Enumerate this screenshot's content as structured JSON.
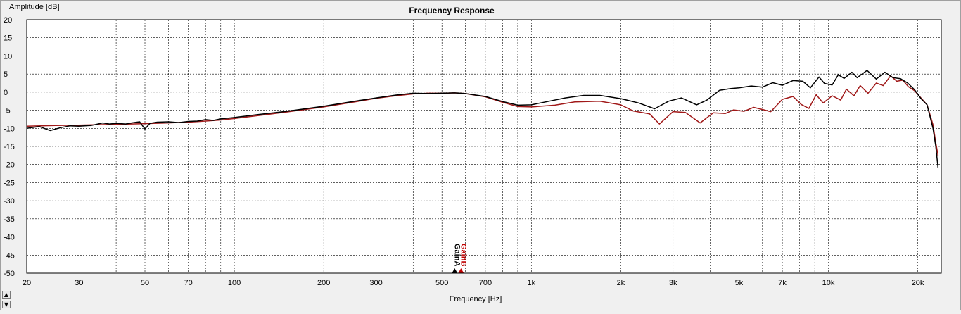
{
  "chart_data": {
    "type": "line",
    "title": "Frequency Response",
    "xlabel": "Frequency [Hz]",
    "ylabel": "Amplitude [dB]",
    "x_scale": "log",
    "xlim": [
      20,
      24000
    ],
    "ylim": [
      -50,
      20
    ],
    "grid": true,
    "x_ticks": [
      {
        "value": 20,
        "label": "20"
      },
      {
        "value": 30,
        "label": "30"
      },
      {
        "value": 50,
        "label": "50"
      },
      {
        "value": 70,
        "label": "70"
      },
      {
        "value": 100,
        "label": "100"
      },
      {
        "value": 200,
        "label": "200"
      },
      {
        "value": 300,
        "label": "300"
      },
      {
        "value": 500,
        "label": "500"
      },
      {
        "value": 700,
        "label": "700"
      },
      {
        "value": 1000,
        "label": "1k"
      },
      {
        "value": 2000,
        "label": "2k"
      },
      {
        "value": 3000,
        "label": "3k"
      },
      {
        "value": 5000,
        "label": "5k"
      },
      {
        "value": 7000,
        "label": "7k"
      },
      {
        "value": 10000,
        "label": "10k"
      },
      {
        "value": 20000,
        "label": "20k"
      }
    ],
    "x_minor_gridlines": [
      40,
      60,
      80,
      90,
      400,
      600,
      800,
      900,
      4000,
      6000,
      8000,
      9000
    ],
    "y_ticks": [
      20,
      15,
      10,
      5,
      0,
      -5,
      -10,
      -15,
      -20,
      -25,
      -30,
      -35,
      -40,
      -45,
      -50
    ],
    "markers": [
      {
        "label": "GainA",
        "x": 540,
        "color": "#000000"
      },
      {
        "label": "GainB",
        "x": 540,
        "color": "#c00000"
      }
    ],
    "series": [
      {
        "color": "#000000",
        "points": [
          [
            20,
            -10
          ],
          [
            22,
            -9.5
          ],
          [
            24,
            -10.6
          ],
          [
            26,
            -9.8
          ],
          [
            28,
            -9.3
          ],
          [
            30,
            -9.4
          ],
          [
            33,
            -9.2
          ],
          [
            36,
            -8.5
          ],
          [
            38,
            -8.8
          ],
          [
            40,
            -8.6
          ],
          [
            43,
            -8.8
          ],
          [
            45,
            -8.5
          ],
          [
            48,
            -8.2
          ],
          [
            50,
            -10.2
          ],
          [
            52,
            -8.6
          ],
          [
            55,
            -8.3
          ],
          [
            60,
            -8.2
          ],
          [
            65,
            -8.4
          ],
          [
            70,
            -8.1
          ],
          [
            75,
            -8.0
          ],
          [
            80,
            -7.6
          ],
          [
            85,
            -7.8
          ],
          [
            90,
            -7.4
          ],
          [
            100,
            -7.0
          ],
          [
            120,
            -6.2
          ],
          [
            150,
            -5.3
          ],
          [
            200,
            -3.9
          ],
          [
            250,
            -2.6
          ],
          [
            300,
            -1.6
          ],
          [
            350,
            -0.8
          ],
          [
            400,
            -0.3
          ],
          [
            450,
            -0.4
          ],
          [
            500,
            -0.3
          ],
          [
            550,
            -0.2
          ],
          [
            600,
            -0.4
          ],
          [
            700,
            -1.2
          ],
          [
            800,
            -2.6
          ],
          [
            900,
            -3.6
          ],
          [
            1000,
            -3.5
          ],
          [
            1100,
            -2.8
          ],
          [
            1300,
            -1.6
          ],
          [
            1500,
            -0.9
          ],
          [
            1700,
            -0.9
          ],
          [
            2000,
            -1.8
          ],
          [
            2300,
            -3.0
          ],
          [
            2600,
            -4.6
          ],
          [
            2900,
            -2.5
          ],
          [
            3200,
            -1.6
          ],
          [
            3600,
            -3.5
          ],
          [
            3900,
            -2.2
          ],
          [
            4300,
            0.5
          ],
          [
            4700,
            1.0
          ],
          [
            5000,
            1.2
          ],
          [
            5500,
            1.7
          ],
          [
            6000,
            1.4
          ],
          [
            6500,
            2.6
          ],
          [
            7000,
            1.9
          ],
          [
            7600,
            3.2
          ],
          [
            8200,
            3.0
          ],
          [
            8700,
            1.2
          ],
          [
            9300,
            4.2
          ],
          [
            9700,
            2.4
          ],
          [
            10300,
            2.0
          ],
          [
            10800,
            4.8
          ],
          [
            11300,
            3.8
          ],
          [
            12000,
            5.5
          ],
          [
            12500,
            4.0
          ],
          [
            13500,
            6.0
          ],
          [
            14500,
            3.6
          ],
          [
            15500,
            5.5
          ],
          [
            16500,
            4.0
          ],
          [
            17500,
            3.7
          ],
          [
            18500,
            2.5
          ],
          [
            19500,
            0.7
          ],
          [
            20500,
            -1.8
          ],
          [
            21500,
            -3.5
          ],
          [
            22500,
            -10
          ],
          [
            23000,
            -15
          ],
          [
            23400,
            -21
          ]
        ]
      },
      {
        "color": "#a01818",
        "points": [
          [
            20,
            -9.4
          ],
          [
            25,
            -9.2
          ],
          [
            30,
            -9.1
          ],
          [
            40,
            -8.9
          ],
          [
            50,
            -8.7
          ],
          [
            60,
            -8.5
          ],
          [
            70,
            -8.3
          ],
          [
            80,
            -8.0
          ],
          [
            90,
            -7.7
          ],
          [
            100,
            -7.3
          ],
          [
            120,
            -6.5
          ],
          [
            150,
            -5.5
          ],
          [
            200,
            -4.1
          ],
          [
            250,
            -2.8
          ],
          [
            300,
            -1.7
          ],
          [
            350,
            -1.0
          ],
          [
            400,
            -0.5
          ],
          [
            450,
            -0.3
          ],
          [
            500,
            -0.3
          ],
          [
            550,
            -0.2
          ],
          [
            600,
            -0.4
          ],
          [
            700,
            -1.3
          ],
          [
            800,
            -2.8
          ],
          [
            900,
            -4.0
          ],
          [
            1000,
            -4.1
          ],
          [
            1200,
            -3.6
          ],
          [
            1400,
            -2.7
          ],
          [
            1700,
            -2.5
          ],
          [
            2000,
            -3.5
          ],
          [
            2200,
            -5.2
          ],
          [
            2500,
            -6.0
          ],
          [
            2700,
            -8.8
          ],
          [
            3000,
            -5.4
          ],
          [
            3300,
            -5.6
          ],
          [
            3700,
            -8.5
          ],
          [
            4100,
            -5.7
          ],
          [
            4500,
            -5.9
          ],
          [
            4800,
            -4.9
          ],
          [
            5200,
            -5.3
          ],
          [
            5600,
            -4.2
          ],
          [
            6000,
            -4.8
          ],
          [
            6400,
            -5.4
          ],
          [
            7000,
            -2.0
          ],
          [
            7600,
            -1.2
          ],
          [
            8100,
            -3.4
          ],
          [
            8600,
            -4.5
          ],
          [
            9100,
            -0.7
          ],
          [
            9600,
            -3.0
          ],
          [
            10300,
            -1.0
          ],
          [
            11000,
            -2.2
          ],
          [
            11500,
            0.8
          ],
          [
            12200,
            -1.0
          ],
          [
            12800,
            1.8
          ],
          [
            13600,
            -0.3
          ],
          [
            14500,
            2.5
          ],
          [
            15300,
            1.8
          ],
          [
            16200,
            4.5
          ],
          [
            17000,
            3.0
          ],
          [
            17800,
            3.3
          ],
          [
            18600,
            1.5
          ],
          [
            19500,
            0.4
          ],
          [
            20500,
            -1.6
          ],
          [
            21500,
            -3.5
          ],
          [
            22500,
            -9
          ],
          [
            23000,
            -14
          ],
          [
            23400,
            -17.5
          ]
        ]
      }
    ]
  }
}
